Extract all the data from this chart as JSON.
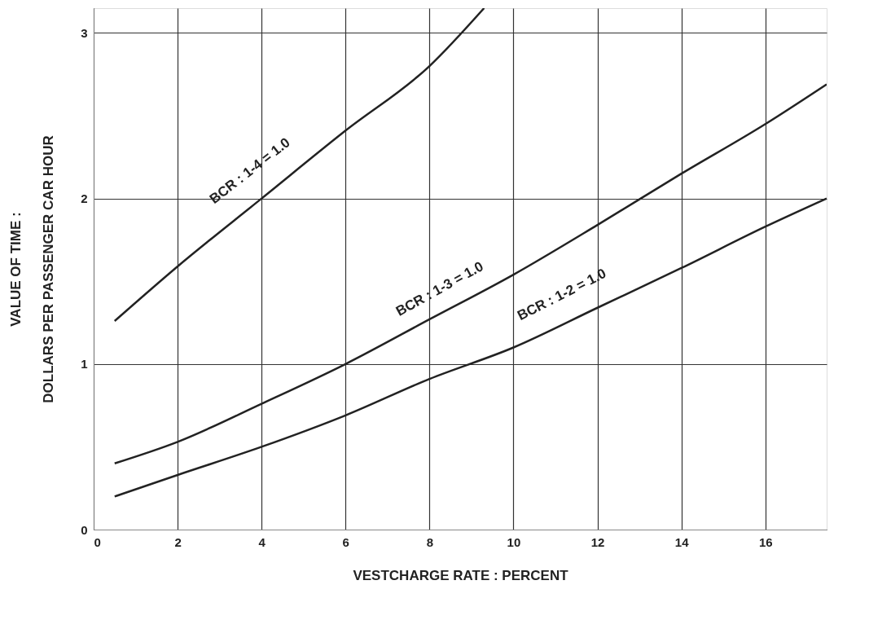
{
  "chart_data": {
    "type": "line",
    "xlabel": "VESTCHARGE  RATE  :  PERCENT",
    "ylabel": "VALUE OF TIME  :\nDOLLARS PER PASSENGER CAR HOUR",
    "xlim": [
      0,
      17.46
    ],
    "ylim": [
      0,
      3.15
    ],
    "xticks": [
      0,
      2,
      4,
      6,
      8,
      10,
      12,
      14,
      16
    ],
    "yticks": [
      0,
      1,
      2,
      3
    ],
    "grid": true,
    "marker": "none",
    "line_style": "solid",
    "series": [
      {
        "color": "#222222",
        "x": [
          0.5,
          2,
          4,
          6,
          8,
          9.3
        ],
        "values": [
          1.26,
          1.59,
          2.0,
          2.41,
          2.8,
          3.15
        ]
      },
      {
        "color": "#222222",
        "x": [
          0.5,
          2,
          4,
          6,
          8,
          10,
          12,
          14,
          16,
          17.46
        ],
        "values": [
          0.4,
          0.53,
          0.76,
          1.0,
          1.27,
          1.54,
          1.84,
          2.15,
          2.45,
          2.69
        ]
      },
      {
        "color": "#222222",
        "x": [
          0.5,
          2,
          4,
          6,
          8,
          10,
          12,
          14,
          16,
          17.46
        ],
        "values": [
          0.2,
          0.33,
          0.5,
          0.69,
          0.91,
          1.1,
          1.34,
          1.58,
          1.83,
          2.0
        ]
      }
    ],
    "annotations": [
      "BCR : 1-4 =    1.0",
      "BCR : 1-3 =    1.0",
      "BCR : 1-2 =    1.0"
    ]
  }
}
